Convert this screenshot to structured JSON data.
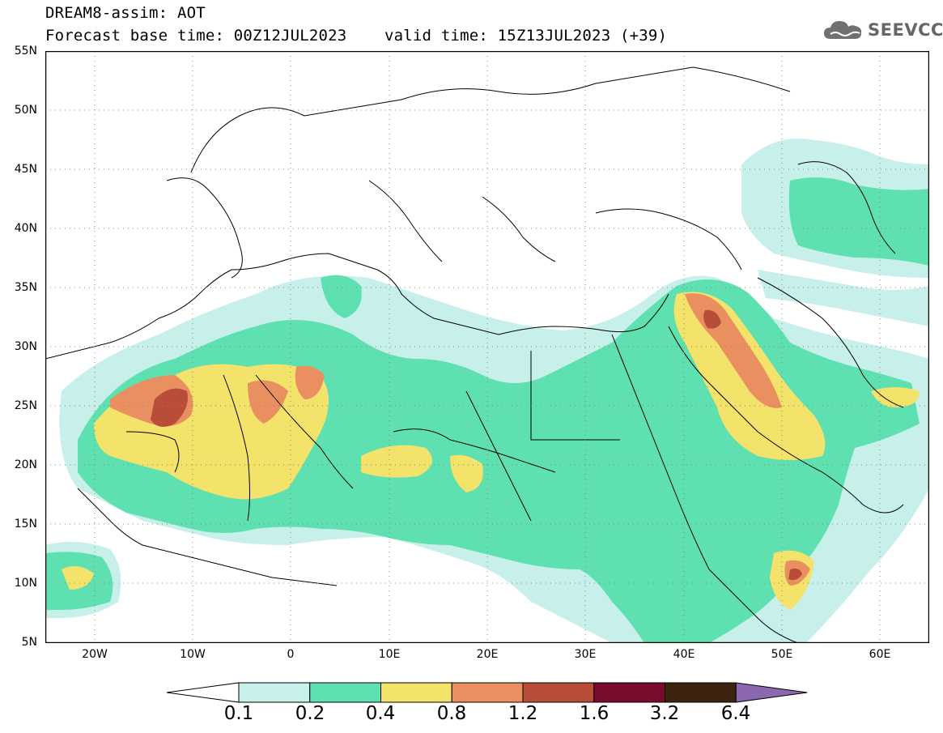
{
  "header": {
    "line1": "DREAM8-assim: AOT",
    "line2": "Forecast base time: 00Z12JUL2023    valid time: 15Z13JUL2023 (+39)"
  },
  "logo": {
    "text": "SEEVCCC",
    "icon": "cloud-icon"
  },
  "map": {
    "variable": "AOT",
    "lon_range": [
      -25,
      65
    ],
    "lat_range": [
      5,
      55
    ],
    "grid": "dotted",
    "lat_ticks": [
      "55N",
      "50N",
      "45N",
      "40N",
      "35N",
      "30N",
      "25N",
      "20N",
      "15N",
      "10N",
      "5N"
    ],
    "lon_ticks": [
      "20W",
      "10W",
      "0",
      "10E",
      "20E",
      "30E",
      "40E",
      "50E",
      "60E"
    ]
  },
  "colorbar": {
    "labels": [
      "0.1",
      "0.2",
      "0.4",
      "0.8",
      "1.2",
      "1.6",
      "3.2",
      "6.4"
    ],
    "colors": [
      "#c8f0ea",
      "#5fe0b0",
      "#f3e36a",
      "#ea9060",
      "#b84e3a",
      "#780c2a",
      "#3c2410",
      "#8c68b0"
    ]
  }
}
